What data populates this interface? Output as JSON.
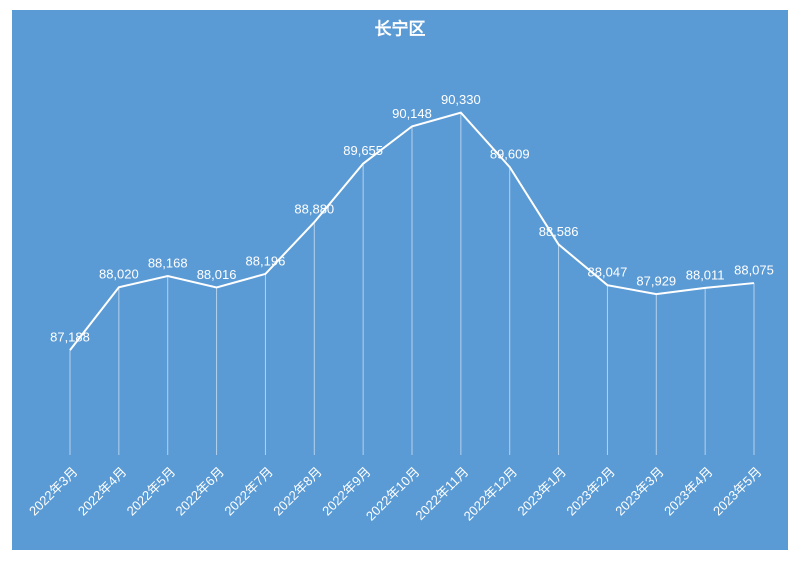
{
  "chart_data": {
    "type": "line",
    "title": "长宁区",
    "categories": [
      "2022年3月",
      "2022年4月",
      "2022年5月",
      "2022年6月",
      "2022年7月",
      "2022年8月",
      "2022年9月",
      "2022年10月",
      "2022年11月",
      "2022年12月",
      "2023年1月",
      "2023年2月",
      "2023年3月",
      "2023年4月",
      "2023年5月"
    ],
    "values": [
      87188,
      88020,
      88168,
      88016,
      88196,
      88880,
      89655,
      90148,
      90330,
      89609,
      88586,
      88047,
      87929,
      88011,
      88075
    ],
    "value_labels": [
      "87,188",
      "88,020",
      "88,168",
      "88,016",
      "88,196",
      "88,880",
      "89,655",
      "90,148",
      "90,330",
      "89,609",
      "88,586",
      "88,047",
      "87,929",
      "88,011",
      "88,075"
    ],
    "color": "#ffffff",
    "background": "#5b9bd5",
    "drop_lines": true,
    "ylim": [
      85800,
      91000
    ]
  }
}
